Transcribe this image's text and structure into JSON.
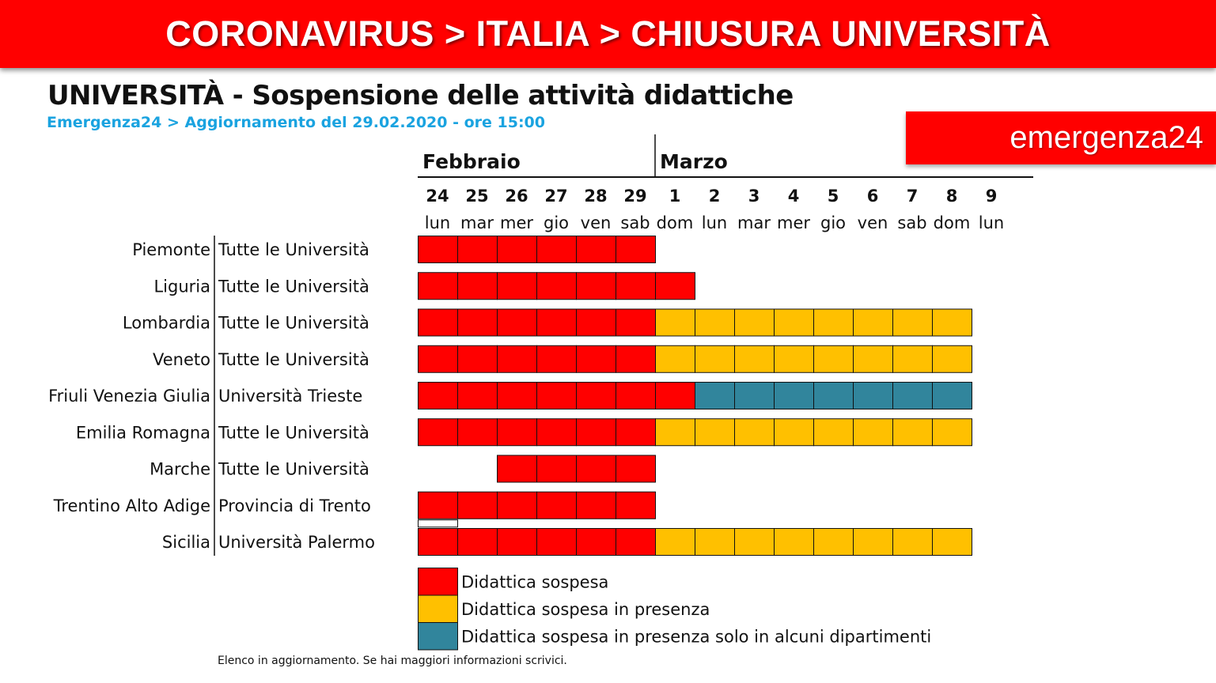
{
  "header": {
    "title": "CORONAVIRUS > ITALIA > CHIUSURA UNIVERSITÀ",
    "brand": "emergenza24"
  },
  "chart_data": {
    "type": "table",
    "title": "UNIVERSITÀ - Sospensione delle attività didattiche",
    "subtitle": "Emergenza24 > Aggiornamento del 29.02.2020 - ore 15:00",
    "months": [
      {
        "label": "Febbraio",
        "days": 6
      },
      {
        "label": "Marzo",
        "days": 9
      }
    ],
    "days": [
      "24",
      "25",
      "26",
      "27",
      "28",
      "29",
      "1",
      "2",
      "3",
      "4",
      "5",
      "6",
      "7",
      "8",
      "9"
    ],
    "weekdays": [
      "lun",
      "mar",
      "mer",
      "gio",
      "ven",
      "sab",
      "dom",
      "lun",
      "mar",
      "mer",
      "gio",
      "ven",
      "sab",
      "dom",
      "lun"
    ],
    "status_colors": {
      "R": "#ff0000",
      "Y": "#ffc000",
      "B": "#31859c"
    },
    "rows": [
      {
        "region": "Piemonte",
        "scope": "Tutte le Università",
        "cells": [
          "R",
          "R",
          "R",
          "R",
          "R",
          "R",
          "",
          "",
          "",
          "",
          "",
          "",
          "",
          "",
          ""
        ]
      },
      {
        "region": "Liguria",
        "scope": "Tutte le Università",
        "cells": [
          "R",
          "R",
          "R",
          "R",
          "R",
          "R",
          "R",
          "",
          "",
          "",
          "",
          "",
          "",
          "",
          ""
        ]
      },
      {
        "region": "Lombardia",
        "scope": "Tutte le Università",
        "cells": [
          "R",
          "R",
          "R",
          "R",
          "R",
          "R",
          "Y",
          "Y",
          "Y",
          "Y",
          "Y",
          "Y",
          "Y",
          "Y",
          ""
        ]
      },
      {
        "region": "Veneto",
        "scope": "Tutte le Università",
        "cells": [
          "R",
          "R",
          "R",
          "R",
          "R",
          "R",
          "Y",
          "Y",
          "Y",
          "Y",
          "Y",
          "Y",
          "Y",
          "Y",
          ""
        ]
      },
      {
        "region": "Friuli Venezia Giulia",
        "scope": "Università Trieste",
        "cells": [
          "R",
          "R",
          "R",
          "R",
          "R",
          "R",
          "R",
          "B",
          "B",
          "B",
          "B",
          "B",
          "B",
          "B",
          ""
        ]
      },
      {
        "region": "Emilia Romagna",
        "scope": "Tutte le Università",
        "cells": [
          "R",
          "R",
          "R",
          "R",
          "R",
          "R",
          "Y",
          "Y",
          "Y",
          "Y",
          "Y",
          "Y",
          "Y",
          "Y",
          ""
        ]
      },
      {
        "region": "Marche",
        "scope": "Tutte le Università",
        "cells": [
          "",
          "",
          "R",
          "R",
          "R",
          "R",
          "",
          "",
          "",
          "",
          "",
          "",
          "",
          "",
          ""
        ]
      },
      {
        "region": "Trentino Alto Adige",
        "scope": "Provincia di Trento",
        "cells": [
          "R",
          "R",
          "R",
          "R",
          "R",
          "R",
          "",
          "",
          "",
          "",
          "",
          "",
          "",
          "",
          ""
        ]
      },
      {
        "region": "Sicilia",
        "scope": "Università Palermo",
        "cells": [
          "R",
          "R",
          "R",
          "R",
          "R",
          "R",
          "Y",
          "Y",
          "Y",
          "Y",
          "Y",
          "Y",
          "Y",
          "Y",
          ""
        ]
      }
    ],
    "legend": [
      {
        "key": "R",
        "label": "Didattica sospesa"
      },
      {
        "key": "Y",
        "label": "Didattica sospesa in presenza"
      },
      {
        "key": "B",
        "label": "Didattica sospesa in presenza solo in alcuni dipartimenti"
      }
    ]
  },
  "footnote": "Elenco in aggiornamento. Se hai maggiori informazioni scrivici."
}
